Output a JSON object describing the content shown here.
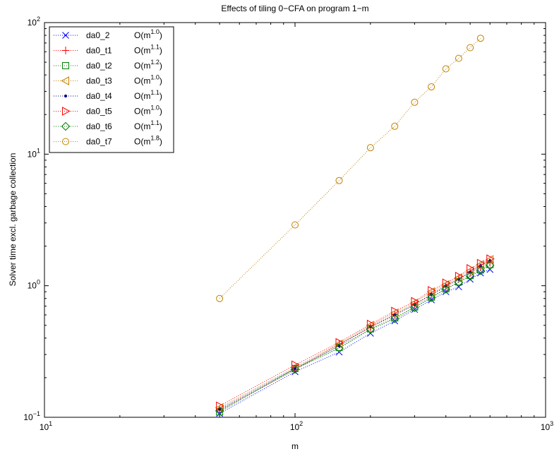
{
  "chart_data": {
    "type": "scatter",
    "title": "Effects of tiling    0−CFA on program 1−m",
    "xlabel": "m",
    "ylabel": "Solver time excl. garbage collection",
    "xscale": "log",
    "yscale": "log",
    "xlim": [
      10,
      1000
    ],
    "ylim": [
      0.1,
      100
    ],
    "x_ticks": [
      10,
      100,
      1000
    ],
    "y_ticks": [
      0.1,
      1,
      10,
      100
    ],
    "x_tick_labels": [
      {
        "base": "10",
        "exp": "1"
      },
      {
        "base": "10",
        "exp": "2"
      },
      {
        "base": "10",
        "exp": "3"
      }
    ],
    "y_tick_labels": [
      {
        "base": "10",
        "exp": "−1"
      },
      {
        "base": "10",
        "exp": "0"
      },
      {
        "base": "10",
        "exp": "1"
      },
      {
        "base": "10",
        "exp": "2"
      }
    ],
    "grid": false,
    "legend_position": "top-left",
    "x": [
      50,
      100,
      150,
      200,
      250,
      300,
      350,
      400,
      450,
      500,
      550,
      600
    ],
    "series": [
      {
        "name": "da0_2",
        "order_label": "O(m",
        "order_exp": "1.0",
        "marker": "x",
        "color": "#0000ff",
        "values": [
          0.107,
          0.222,
          0.313,
          0.435,
          0.54,
          0.66,
          0.78,
          0.9,
          0.98,
          1.12,
          1.25,
          1.33
        ]
      },
      {
        "name": "da0_t1",
        "order_label": "O(m",
        "order_exp": "1.1",
        "marker": "+",
        "color": "#ff0000",
        "values": [
          0.113,
          0.23,
          0.36,
          0.48,
          0.6,
          0.72,
          0.85,
          0.98,
          1.13,
          1.25,
          1.38,
          1.5
        ]
      },
      {
        "name": "da0_t2",
        "order_label": "O(m",
        "order_exp": "1.2",
        "marker": "square",
        "color": "#008000",
        "values": [
          0.11,
          0.235,
          0.34,
          0.47,
          0.57,
          0.69,
          0.82,
          0.95,
          1.07,
          1.2,
          1.32,
          1.45
        ]
      },
      {
        "name": "da0_t3",
        "order_label": "O(m",
        "order_exp": "1.0",
        "marker": "triangle-left",
        "color": "#c08000",
        "values": [
          0.118,
          0.24,
          0.36,
          0.5,
          0.62,
          0.74,
          0.9,
          1.02,
          1.15,
          1.3,
          1.45,
          1.58
        ]
      },
      {
        "name": "da0_t4",
        "order_label": "O(m",
        "order_exp": "1.1",
        "marker": "dot",
        "color": "#000080",
        "values": [
          0.115,
          0.235,
          0.35,
          0.49,
          0.6,
          0.72,
          0.86,
          1.0,
          1.12,
          1.27,
          1.42,
          1.55
        ]
      },
      {
        "name": "da0_t5",
        "order_label": "O(m",
        "order_exp": "1.0",
        "marker": "triangle-right",
        "color": "#ff0000",
        "values": [
          0.122,
          0.25,
          0.37,
          0.51,
          0.64,
          0.76,
          0.92,
          1.05,
          1.18,
          1.35,
          1.48,
          1.6
        ]
      },
      {
        "name": "da0_t6",
        "order_label": "O(m",
        "order_exp": "1.1",
        "marker": "diamond",
        "color": "#008000",
        "values": [
          0.112,
          0.232,
          0.335,
          0.465,
          0.56,
          0.68,
          0.81,
          0.94,
          1.06,
          1.18,
          1.3,
          1.43
        ]
      },
      {
        "name": "da0_t7",
        "order_label": "O(m",
        "order_exp": "1.8",
        "marker": "circle",
        "color": "#c08000",
        "values": [
          0.8,
          2.9,
          6.3,
          11.2,
          16.3,
          24.8,
          32.5,
          44.5,
          53.5,
          64.5,
          76
        ]
      }
    ]
  }
}
